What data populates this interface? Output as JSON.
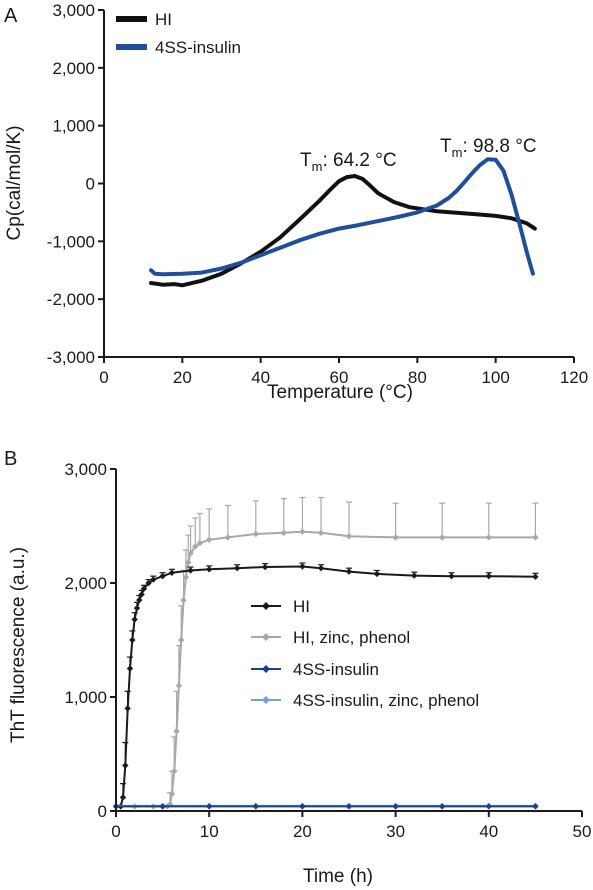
{
  "chart_data": [
    {
      "panel_label": "A",
      "type": "line",
      "title": "",
      "xlabel": "Temperature (°C)",
      "ylabel": "Cp(cal/mol/K)",
      "xlim": [
        0,
        120
      ],
      "ylim": [
        -3000,
        3000
      ],
      "xticks": [
        0,
        20,
        40,
        60,
        80,
        100,
        120
      ],
      "yticks": [
        -3000,
        -2000,
        -1000,
        0,
        1000,
        2000,
        3000
      ],
      "xtick_labels": [
        "0",
        "20",
        "40",
        "60",
        "80",
        "100",
        "120"
      ],
      "ytick_labels": [
        "-3,000",
        "-2,000",
        "-1,000",
        "0",
        "1,000",
        "2,000",
        "3,000"
      ],
      "grid": false,
      "legend_position": "top-left",
      "series": [
        {
          "name": "HI",
          "color": "#111111",
          "x": [
            12,
            15,
            18,
            20,
            25,
            30,
            35,
            40,
            45,
            50,
            55,
            58,
            60,
            62,
            64,
            66,
            68,
            70,
            74,
            78,
            85,
            95,
            100,
            104,
            108,
            110
          ],
          "y": [
            -1720,
            -1750,
            -1740,
            -1760,
            -1680,
            -1560,
            -1380,
            -1180,
            -930,
            -620,
            -300,
            -90,
            40,
            110,
            130,
            80,
            -40,
            -170,
            -320,
            -410,
            -480,
            -530,
            -560,
            -600,
            -690,
            -780
          ]
        },
        {
          "name": "4SS-insulin",
          "color": "#1f4e9c",
          "x": [
            12,
            13,
            15,
            20,
            25,
            30,
            35,
            40,
            45,
            50,
            55,
            60,
            65,
            70,
            75,
            80,
            85,
            88,
            90,
            92,
            94,
            96,
            98,
            100,
            102,
            104,
            106,
            108,
            109.5
          ],
          "y": [
            -1500,
            -1560,
            -1570,
            -1560,
            -1540,
            -1470,
            -1370,
            -1240,
            -1110,
            -980,
            -870,
            -780,
            -720,
            -650,
            -580,
            -500,
            -380,
            -250,
            -130,
            20,
            180,
            320,
            420,
            410,
            220,
            -180,
            -680,
            -1200,
            -1560
          ]
        }
      ],
      "annotations": [
        {
          "text_main": "T",
          "text_sub": "m",
          "text_value": ": 64.2  °C",
          "x": 64.2
        },
        {
          "text_main": "T",
          "text_sub": "m",
          "text_value": ": 98.8  °C",
          "x": 98.8
        }
      ]
    },
    {
      "panel_label": "B",
      "type": "line",
      "title": "",
      "xlabel": "Time (h)",
      "ylabel": "ThT fluorescence (a.u.)",
      "xlim": [
        0,
        50
      ],
      "ylim": [
        0,
        3000
      ],
      "xticks": [
        0,
        10,
        20,
        30,
        40,
        50
      ],
      "yticks": [
        0,
        1000,
        2000,
        3000
      ],
      "xtick_labels": [
        "0",
        "10",
        "20",
        "30",
        "40",
        "50"
      ],
      "ytick_labels": [
        "0",
        "1,000",
        "2,000",
        "3,000"
      ],
      "grid": false,
      "legend_position": "center-right",
      "series": [
        {
          "name": "HI",
          "color": "#1a1a1a",
          "marker": "diamond",
          "x": [
            0.5,
            0.75,
            1,
            1.25,
            1.5,
            1.75,
            2,
            2.25,
            2.5,
            2.75,
            3,
            3.5,
            4,
            5,
            6,
            8,
            10,
            13,
            16,
            20,
            22,
            25,
            28,
            32,
            36,
            40,
            45
          ],
          "y": [
            40,
            120,
            400,
            900,
            1250,
            1500,
            1680,
            1780,
            1850,
            1900,
            1950,
            2000,
            2030,
            2060,
            2090,
            2110,
            2120,
            2130,
            2140,
            2145,
            2130,
            2100,
            2080,
            2065,
            2060,
            2060,
            2055
          ],
          "error": [
            0,
            120,
            200,
            150,
            100,
            80,
            60,
            50,
            40,
            35,
            30,
            30,
            30,
            30,
            30,
            30,
            30,
            30,
            30,
            30,
            30,
            30,
            30,
            30,
            30,
            30,
            30
          ]
        },
        {
          "name": "HI, zinc, phenol",
          "color": "#a8a8a8",
          "marker": "diamond",
          "x": [
            0,
            2,
            4,
            5,
            5.5,
            5.8,
            6,
            6.25,
            6.5,
            6.75,
            7,
            7.25,
            7.5,
            7.75,
            8,
            8.5,
            9,
            10,
            12,
            15,
            18,
            20,
            22,
            25,
            30,
            35,
            40,
            45
          ],
          "y": [
            40,
            40,
            40,
            40,
            40,
            60,
            150,
            350,
            700,
            1100,
            1500,
            1850,
            2050,
            2180,
            2260,
            2320,
            2350,
            2380,
            2400,
            2430,
            2440,
            2450,
            2440,
            2410,
            2400,
            2400,
            2400,
            2400
          ],
          "error": [
            0,
            0,
            0,
            0,
            0,
            100,
            200,
            300,
            350,
            350,
            300,
            260,
            240,
            240,
            240,
            250,
            260,
            270,
            280,
            290,
            300,
            300,
            310,
            300,
            300,
            300,
            300,
            300
          ]
        },
        {
          "name": "4SS-insulin",
          "color": "#1a3f8f",
          "marker": "diamond",
          "x": [
            0,
            5,
            10,
            15,
            20,
            25,
            30,
            35,
            40,
            45
          ],
          "y": [
            40,
            40,
            40,
            40,
            40,
            40,
            40,
            40,
            40,
            40
          ]
        },
        {
          "name": "4SS-insulin, zinc, phenol",
          "color": "#6fa3d8",
          "marker": "diamond",
          "x": [
            0,
            5,
            10,
            15,
            20,
            25,
            30,
            35,
            40,
            45
          ],
          "y": [
            45,
            45,
            45,
            45,
            45,
            45,
            45,
            45,
            45,
            45
          ]
        }
      ]
    }
  ]
}
